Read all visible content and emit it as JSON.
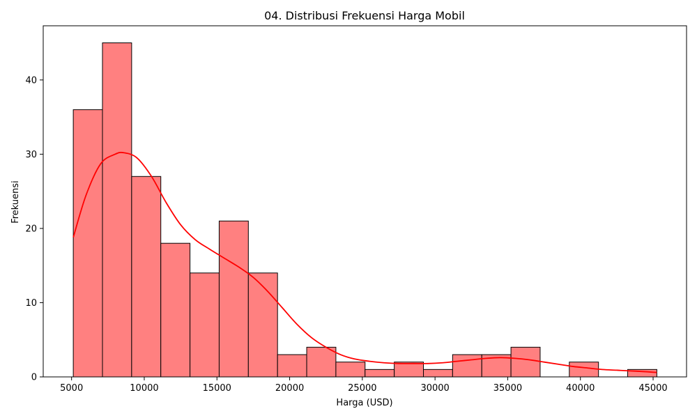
{
  "chart_data": {
    "type": "bar",
    "title": "04. Distribusi Frekuensi Harga Mobil",
    "xlabel": "Harga (USD)",
    "ylabel": "Frekuensi",
    "xlim": [
      3050,
      47300
    ],
    "ylim": [
      0,
      47.3
    ],
    "x_ticks": [
      5000,
      10000,
      15000,
      20000,
      25000,
      30000,
      35000,
      40000,
      45000
    ],
    "y_ticks": [
      0,
      10,
      20,
      30,
      40
    ],
    "x_tick_labels": [
      "5000",
      "10000",
      "15000",
      "20000",
      "25000",
      "30000",
      "35000",
      "40000",
      "45000"
    ],
    "y_tick_labels": [
      "0",
      "10",
      "20",
      "30",
      "40"
    ],
    "bin_edges": [
      5118,
      7125,
      9132,
      11139,
      13146,
      15153,
      17160,
      19167,
      21174,
      23181,
      25188,
      27195,
      29202,
      31209,
      33216,
      35223,
      37230,
      39237,
      41244,
      43251,
      45258
    ],
    "values": [
      36,
      45,
      27,
      18,
      14,
      21,
      14,
      3,
      4,
      2,
      1,
      2,
      1,
      3,
      3,
      4,
      0,
      2,
      0,
      1
    ],
    "kde": {
      "x": [
        5118,
        6000,
        7000,
        8000,
        8600,
        9500,
        10500,
        11500,
        12500,
        13500,
        14500,
        15500,
        16500,
        17500,
        18500,
        19500,
        20500,
        21500,
        22500,
        23500,
        24500,
        25500,
        26500,
        27500,
        28500,
        29500,
        30500,
        31500,
        32500,
        33500,
        34500,
        35500,
        36500,
        37500,
        38500,
        39500,
        40500,
        41500,
        42500,
        43500,
        44500,
        45258
      ],
      "y": [
        18.8,
        24.5,
        28.7,
        30.0,
        30.2,
        29.5,
        27.0,
        23.5,
        20.5,
        18.5,
        17.2,
        16.0,
        14.8,
        13.4,
        11.5,
        9.3,
        7.1,
        5.3,
        4.0,
        3.0,
        2.4,
        2.1,
        1.9,
        1.8,
        1.8,
        1.8,
        1.9,
        2.1,
        2.3,
        2.5,
        2.6,
        2.5,
        2.3,
        2.0,
        1.7,
        1.4,
        1.2,
        1.0,
        0.9,
        0.8,
        0.7,
        0.6
      ]
    },
    "bar_color": "#ff8080",
    "bar_edge_color": "#000000",
    "kde_color": "#ff0000",
    "grid": false,
    "legend": "none"
  }
}
